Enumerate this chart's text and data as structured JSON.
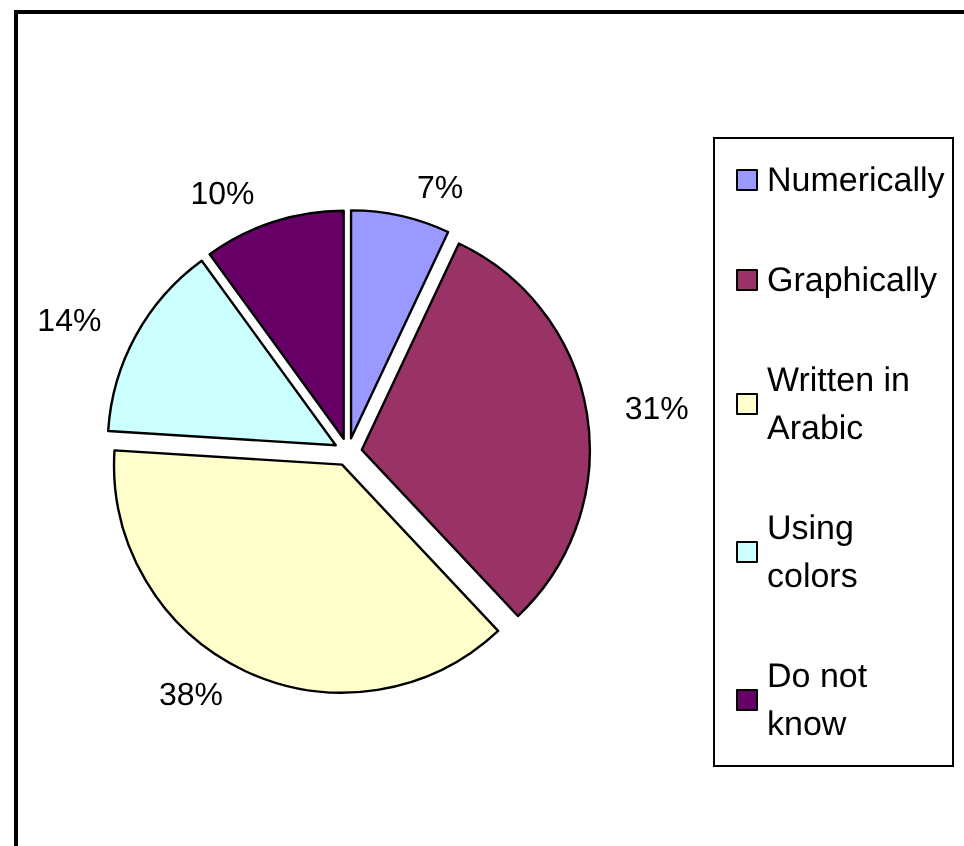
{
  "chart_data": {
    "type": "pie",
    "categories": [
      "Numerically",
      "Graphically",
      "Written in Arabic",
      "Using colors",
      "Do not know"
    ],
    "values": [
      7,
      31,
      38,
      14,
      10
    ],
    "colors": [
      "#9999ff",
      "#993366",
      "#ffffcc",
      "#ccffff",
      "#660066"
    ],
    "value_labels": [
      "7%",
      "31%",
      "38%",
      "14%",
      "10%"
    ],
    "legend": "right"
  }
}
